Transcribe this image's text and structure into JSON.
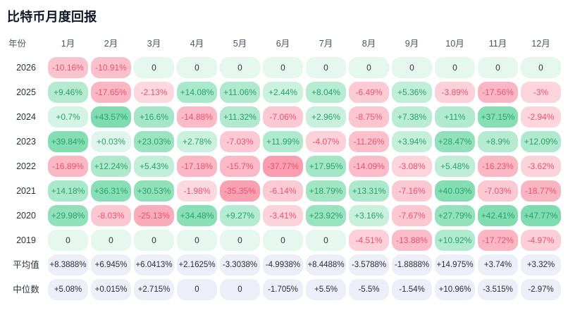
{
  "title": "比特币月度回报",
  "chart_data": {
    "type": "heatmap",
    "title": "比特币月度回报",
    "row_header": "年份",
    "columns": [
      "1月",
      "2月",
      "3月",
      "4月",
      "5月",
      "6月",
      "7月",
      "8月",
      "9月",
      "10月",
      "11月",
      "12月"
    ],
    "rows": [
      {
        "label": "2026",
        "kind": "year",
        "values": [
          "-10.16%",
          "-10.91%",
          "0",
          "0",
          "0",
          "0",
          "0",
          "0",
          "0",
          "0",
          "0",
          "0"
        ]
      },
      {
        "label": "2025",
        "kind": "year",
        "values": [
          "+9.46%",
          "-17.65%",
          "-2.13%",
          "+14.08%",
          "+11.06%",
          "+2.44%",
          "+8.04%",
          "-6.49%",
          "+5.36%",
          "-3.89%",
          "-17.56%",
          "-3%"
        ]
      },
      {
        "label": "2024",
        "kind": "year",
        "values": [
          "+0.7%",
          "+43.57%",
          "+16.6%",
          "-14.88%",
          "+11.32%",
          "-7.06%",
          "+2.96%",
          "-8.75%",
          "+7.38%",
          "+11%",
          "+37.15%",
          "-2.94%"
        ]
      },
      {
        "label": "2023",
        "kind": "year",
        "values": [
          "+39.84%",
          "+0.03%",
          "+23.03%",
          "+2.78%",
          "-7.03%",
          "+11.99%",
          "-4.07%",
          "-11.26%",
          "+3.94%",
          "+28.47%",
          "+8.9%",
          "+12.09%"
        ]
      },
      {
        "label": "2022",
        "kind": "year",
        "values": [
          "-16.89%",
          "+12.24%",
          "+5.43%",
          "-17.18%",
          "-15.7%",
          "-37.77%",
          "+17.95%",
          "-14.09%",
          "-3.08%",
          "+5.48%",
          "-16.23%",
          "-3.62%"
        ]
      },
      {
        "label": "2021",
        "kind": "year",
        "values": [
          "+14.18%",
          "+36.31%",
          "+30.53%",
          "-1.98%",
          "-35.35%",
          "-6.14%",
          "+18.79%",
          "+13.31%",
          "-7.16%",
          "+40.03%",
          "-7.03%",
          "-18.77%"
        ]
      },
      {
        "label": "2020",
        "kind": "year",
        "values": [
          "+29.98%",
          "-8.03%",
          "-25.13%",
          "+34.48%",
          "+9.27%",
          "-3.41%",
          "+23.92%",
          "+3.16%",
          "-7.67%",
          "+27.79%",
          "+42.41%",
          "+47.77%"
        ]
      },
      {
        "label": "2019",
        "kind": "year",
        "values": [
          "0",
          "0",
          "0",
          "0",
          "0",
          "0",
          "0",
          "-4.51%",
          "-13.88%",
          "+10.92%",
          "-17.72%",
          "-4.97%"
        ]
      },
      {
        "label": "平均值",
        "kind": "summary",
        "values": [
          "+8.3888%",
          "+6.945%",
          "+6.0413%",
          "+2.1625%",
          "-3.3038%",
          "-4.9938%",
          "+8.4488%",
          "-3.5788%",
          "-1.8888%",
          "+14.975%",
          "+3.74%",
          "+3.32%"
        ]
      },
      {
        "label": "中位数",
        "kind": "summary",
        "values": [
          "+5.08%",
          "+0.015%",
          "+2.715%",
          "0",
          "0",
          "-1.705%",
          "+5.5%",
          "-5.5%",
          "-1.54%",
          "+10.96%",
          "-3.515%",
          "-2.97%"
        ]
      }
    ]
  },
  "colors": {
    "positive_text": "#27a36c",
    "negative_text": "#ea5071",
    "neutral_text": "#30353e",
    "green_tint_weak": "#e3f7ee",
    "green_tint_strong": "#7fdcb0",
    "red_tint_weak": "#fdeaee",
    "red_tint_strong": "#f89cae",
    "zero_cell_bg": "#e6f7ef",
    "summary_cell_bg": "#edeff8",
    "summary_text": "#2b2f38",
    "header_text": "#4b5563",
    "title_text": "#101828",
    "page_bg": "#ffffff"
  }
}
